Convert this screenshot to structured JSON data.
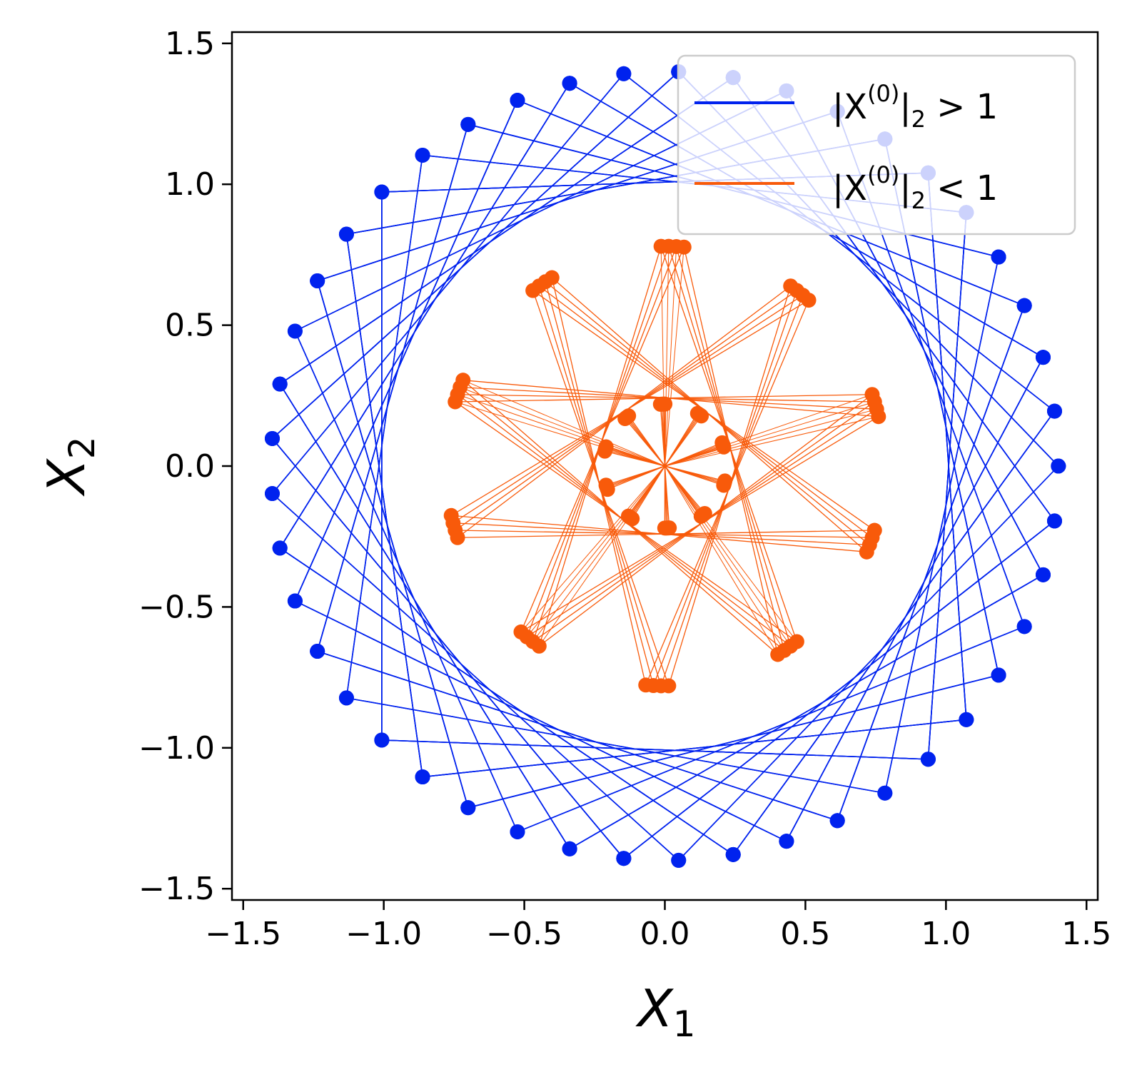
{
  "chart_data": {
    "type": "scatter",
    "xlabel": {
      "symbol": "X",
      "subscript": "1"
    },
    "ylabel": {
      "symbol": "X",
      "subscript": "2"
    },
    "xlim": [
      -1.54,
      1.54
    ],
    "ylim": [
      -1.54,
      1.54
    ],
    "xticks": [
      -1.5,
      -1.0,
      -0.5,
      0.0,
      0.5,
      1.0,
      1.5
    ],
    "yticks": [
      -1.5,
      -1.0,
      -0.5,
      0.0,
      0.5,
      1.0,
      1.5
    ],
    "xtick_labels": [
      "−1.5",
      "−1.0",
      "−0.5",
      "0.0",
      "0.5",
      "1.0",
      "1.5"
    ],
    "ytick_labels": [
      "−1.5",
      "−1.0",
      "−0.5",
      "0.0",
      "0.5",
      "1.0",
      "1.5"
    ],
    "grid": false,
    "legend_position": "top-right",
    "series": [
      {
        "name": "|X^(0)|_2 > 1",
        "legend": {
          "pre": "|X",
          "sup": "(0)",
          "mid": "|",
          "sub": "2",
          "post": " > 1"
        },
        "color": "#0022ee",
        "radius": 1.4,
        "num_points": 42,
        "angle_step_deg": 88,
        "trajectories": 3,
        "angle_offset_deg": 3
      },
      {
        "name": "|X^(0)|_2 < 1",
        "legend": {
          "pre": "|X",
          "sup": "(0)",
          "mid": "|",
          "sub": "2",
          "post": " < 1"
        },
        "color": "#f85a0a",
        "outer": {
          "radius": 0.78,
          "clusters": 10,
          "step": 4,
          "angle_offset_deg": 88,
          "spread_deg": 4
        },
        "inner": {
          "radius": 0.22,
          "clusters": 10,
          "angle_offset_deg": 92,
          "spread_deg": 3
        },
        "per_cluster": 4
      }
    ]
  }
}
